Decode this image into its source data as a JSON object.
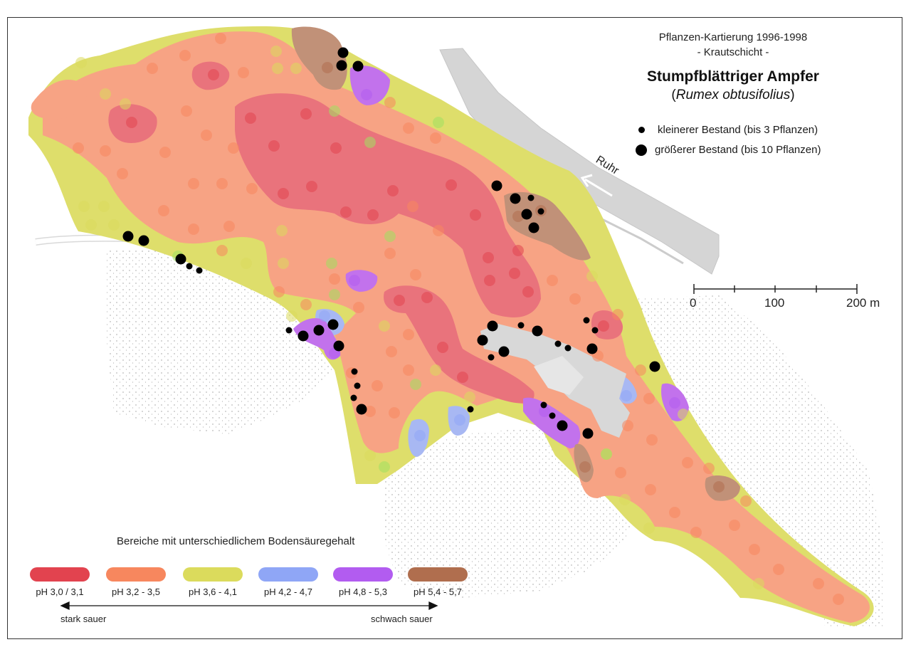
{
  "title": {
    "line1": "Pflanzen-Kartierung 1996-1998",
    "line2": "- Krautschicht -",
    "main": "Stumpfblättriger Ampfer",
    "latin_open": "(",
    "latin": "Rumex obtusifolius",
    "latin_close": ")"
  },
  "occurrence_legend": {
    "small": "kleinerer Bestand (bis 3 Pflanzen)",
    "large": "größerer Bestand (bis 10 Pflanzen)"
  },
  "river_label": "Ruhr",
  "scale": {
    "ticks": [
      "0",
      "100",
      "200 m"
    ]
  },
  "ph_legend": {
    "heading": "Bereiche mit unterschiedlichem Bodensäuregehalt",
    "classes": [
      {
        "label": "pH 3,0 / 3,1",
        "color": "#e2434f"
      },
      {
        "label": "pH 3,2 - 3,5",
        "color": "#f7875e"
      },
      {
        "label": "pH 3,6 - 4,1",
        "color": "#dbdb5c"
      },
      {
        "label": "pH 4,2 - 4,7",
        "color": "#8fa6f6"
      },
      {
        "label": "pH 4,8 - 5,3",
        "color": "#b25cf0"
      },
      {
        "label": "pH 5,4 - 5,7",
        "color": "#b06e4e"
      }
    ],
    "left_end": "stark sauer",
    "right_end": "schwach sauer"
  }
}
